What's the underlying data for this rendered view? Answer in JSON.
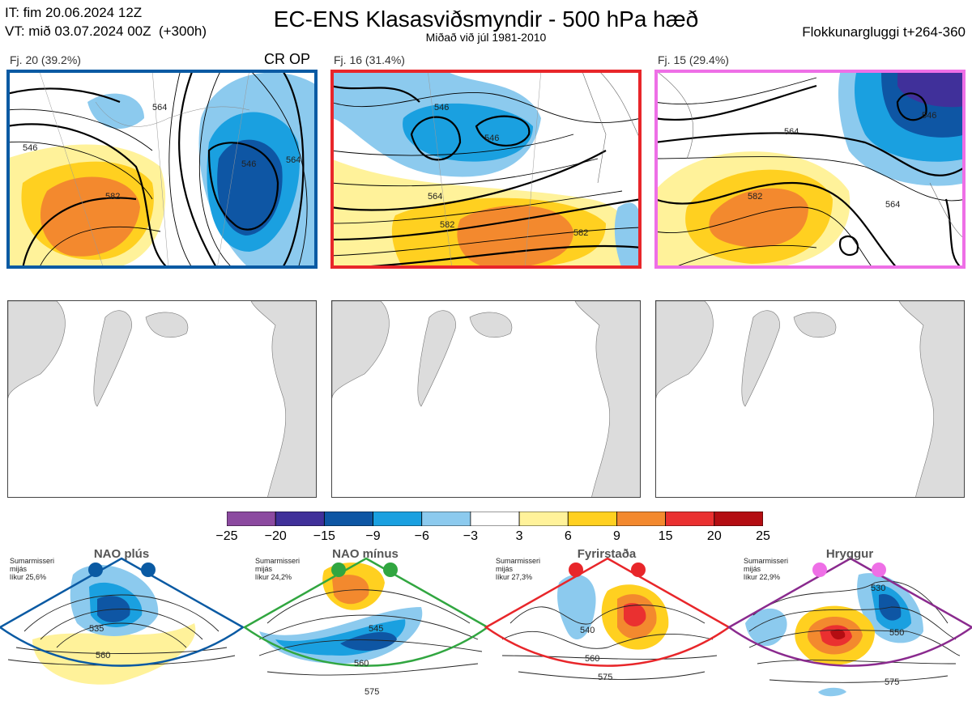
{
  "header": {
    "init_time": "IT: fim 20.06.2024 12Z",
    "valid_time": "VT: mið 03.07.2024 00Z  (+300h)",
    "title": "EC-ENS Klasasviðsmyndir - 500 hPa hæð",
    "subtitle": "Miðað við júl 1981-2010",
    "window": "Flokkunargluggi t+264-360"
  },
  "clusters": [
    {
      "label": "Fj. 20 (39.2%)",
      "tag": "CR OP",
      "frame_color": "#0a5aa3",
      "contours": [
        "546",
        "564",
        "582",
        "546",
        "564"
      ]
    },
    {
      "label": "Fj. 16 (31.4%)",
      "tag": "",
      "frame_color": "#e8262a",
      "contours": [
        "546",
        "564",
        "582",
        "546",
        "582"
      ]
    },
    {
      "label": "Fj. 15 (29.4%)",
      "tag": "",
      "frame_color": "#ee6fe6",
      "contours": [
        "564",
        "582",
        "546",
        "564"
      ]
    }
  ],
  "colorbar": {
    "ticks": [
      "−25",
      "−20",
      "−15",
      "−9",
      "−6",
      "−3",
      "3",
      "6",
      "9",
      "15",
      "20",
      "25"
    ],
    "colors": [
      "#8c4aa0",
      "#40309a",
      "#0e56a4",
      "#1aa0e0",
      "#8ccaee",
      "#ffffff",
      "#fff29a",
      "#ffd020",
      "#f3892e",
      "#ea3030",
      "#b40d12"
    ]
  },
  "regimes": [
    {
      "name": "NAO plús",
      "note": "Sumarmisseri\nmijás\nlíkur 25,6%",
      "frame_color": "#0a5aa3",
      "dot_color": "#0a5aa3",
      "contours": [
        "535",
        "560"
      ]
    },
    {
      "name": "NAO mínus",
      "note": "Sumarmisseri\nmijás\nlíkur 24,2%",
      "frame_color": "#31a640",
      "dot_color": "#31a640",
      "contours": [
        "545",
        "560",
        "575"
      ]
    },
    {
      "name": "Fyrirstaða",
      "note": "Sumarmisseri\nmijás\nlíkur 27,3%",
      "frame_color": "#e8262a",
      "dot_color": "#e8262a",
      "contours": [
        "540",
        "560",
        "575"
      ]
    },
    {
      "name": "Hryggur",
      "note": "Sumarmisseri\nmijás\nlíkur 22,9%",
      "frame_color": "#8a2a8e",
      "dot_color": "#ee6fe6",
      "contours": [
        "530",
        "550",
        "575"
      ]
    }
  ]
}
